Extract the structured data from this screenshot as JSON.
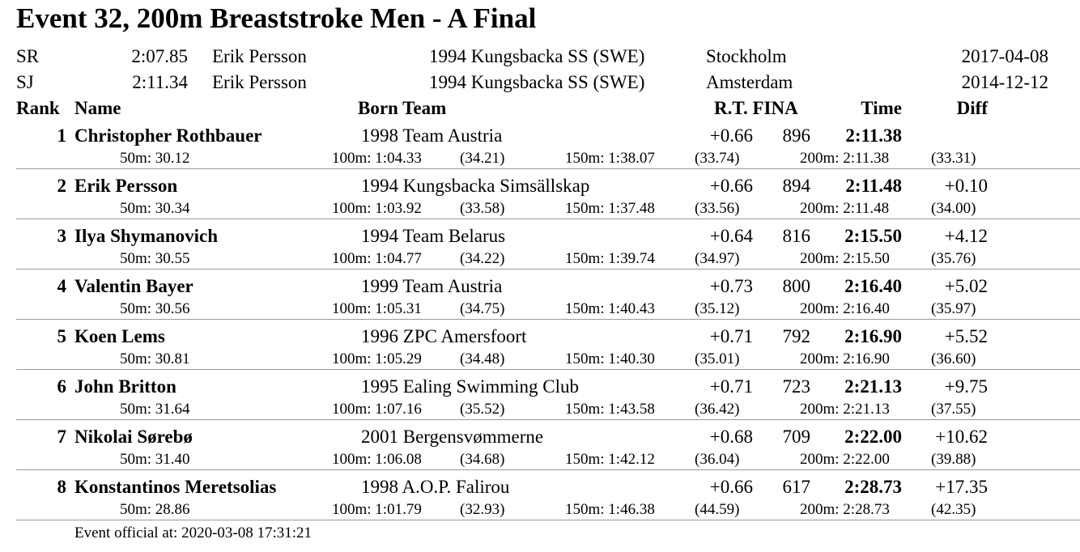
{
  "title": "Event 32, 200m Breaststroke Men - A Final",
  "records": [
    {
      "code": "SR",
      "time": "2:07.85",
      "name": "Erik Persson",
      "born_team": "1994 Kungsbacka SS (SWE)",
      "place": "Stockholm",
      "date": "2017-04-08"
    },
    {
      "code": "SJ",
      "time": "2:11.34",
      "name": "Erik Persson",
      "born_team": "1994 Kungsbacka SS (SWE)",
      "place": "Amsterdam",
      "date": "2014-12-12"
    }
  ],
  "headers": {
    "rank": "Rank",
    "name": "Name",
    "born_team": "Born Team",
    "rt_fina": "R.T. FINA",
    "time": "Time",
    "diff": "Diff"
  },
  "results": [
    {
      "rank": "1",
      "name": "Christopher Rothbauer",
      "born_team": "1998 Team Austria",
      "rt": "+0.66",
      "fina": "896",
      "time": "2:11.38",
      "diff": "",
      "s50": "50m: 30.12",
      "s100": "100m: 1:04.33",
      "l100": "(34.21)",
      "s150": "150m: 1:38.07",
      "l150": "(33.74)",
      "s200": "200m: 2:11.38",
      "l200": "(33.31)"
    },
    {
      "rank": "2",
      "name": "Erik Persson",
      "born_team": "1994 Kungsbacka Simsällskap",
      "rt": "+0.66",
      "fina": "894",
      "time": "2:11.48",
      "diff": "+0.10",
      "s50": "50m: 30.34",
      "s100": "100m: 1:03.92",
      "l100": "(33.58)",
      "s150": "150m: 1:37.48",
      "l150": "(33.56)",
      "s200": "200m: 2:11.48",
      "l200": "(34.00)"
    },
    {
      "rank": "3",
      "name": "Ilya Shymanovich",
      "born_team": "1994 Team Belarus",
      "rt": "+0.64",
      "fina": "816",
      "time": "2:15.50",
      "diff": "+4.12",
      "s50": "50m: 30.55",
      "s100": "100m: 1:04.77",
      "l100": "(34.22)",
      "s150": "150m: 1:39.74",
      "l150": "(34.97)",
      "s200": "200m: 2:15.50",
      "l200": "(35.76)"
    },
    {
      "rank": "4",
      "name": "Valentin Bayer",
      "born_team": "1999 Team Austria",
      "rt": "+0.73",
      "fina": "800",
      "time": "2:16.40",
      "diff": "+5.02",
      "s50": "50m: 30.56",
      "s100": "100m: 1:05.31",
      "l100": "(34.75)",
      "s150": "150m: 1:40.43",
      "l150": "(35.12)",
      "s200": "200m: 2:16.40",
      "l200": "(35.97)"
    },
    {
      "rank": "5",
      "name": "Koen Lems",
      "born_team": "1996 ZPC Amersfoort",
      "rt": "+0.71",
      "fina": "792",
      "time": "2:16.90",
      "diff": "+5.52",
      "s50": "50m: 30.81",
      "s100": "100m: 1:05.29",
      "l100": "(34.48)",
      "s150": "150m: 1:40.30",
      "l150": "(35.01)",
      "s200": "200m: 2:16.90",
      "l200": "(36.60)"
    },
    {
      "rank": "6",
      "name": "John Britton",
      "born_team": "1995 Ealing Swimming Club",
      "rt": "+0.71",
      "fina": "723",
      "time": "2:21.13",
      "diff": "+9.75",
      "s50": "50m: 31.64",
      "s100": "100m: 1:07.16",
      "l100": "(35.52)",
      "s150": "150m: 1:43.58",
      "l150": "(36.42)",
      "s200": "200m: 2:21.13",
      "l200": "(37.55)"
    },
    {
      "rank": "7",
      "name": "Nikolai Sørebø",
      "born_team": "2001 Bergensvømmerne",
      "rt": "+0.68",
      "fina": "709",
      "time": "2:22.00",
      "diff": "+10.62",
      "s50": "50m: 31.40",
      "s100": "100m: 1:06.08",
      "l100": "(34.68)",
      "s150": "150m: 1:42.12",
      "l150": "(36.04)",
      "s200": "200m: 2:22.00",
      "l200": "(39.88)"
    },
    {
      "rank": "8",
      "name": "Konstantinos Meretsolias",
      "born_team": "1998 A.O.P. Falirou",
      "rt": "+0.66",
      "fina": "617",
      "time": "2:28.73",
      "diff": "+17.35",
      "s50": "50m: 28.86",
      "s100": "100m: 1:01.79",
      "l100": "(32.93)",
      "s150": "150m: 1:46.38",
      "l150": "(44.59)",
      "s200": "200m: 2:28.73",
      "l200": "(42.35)"
    }
  ],
  "footer": "Event official at: 2020-03-08 17:31:21"
}
